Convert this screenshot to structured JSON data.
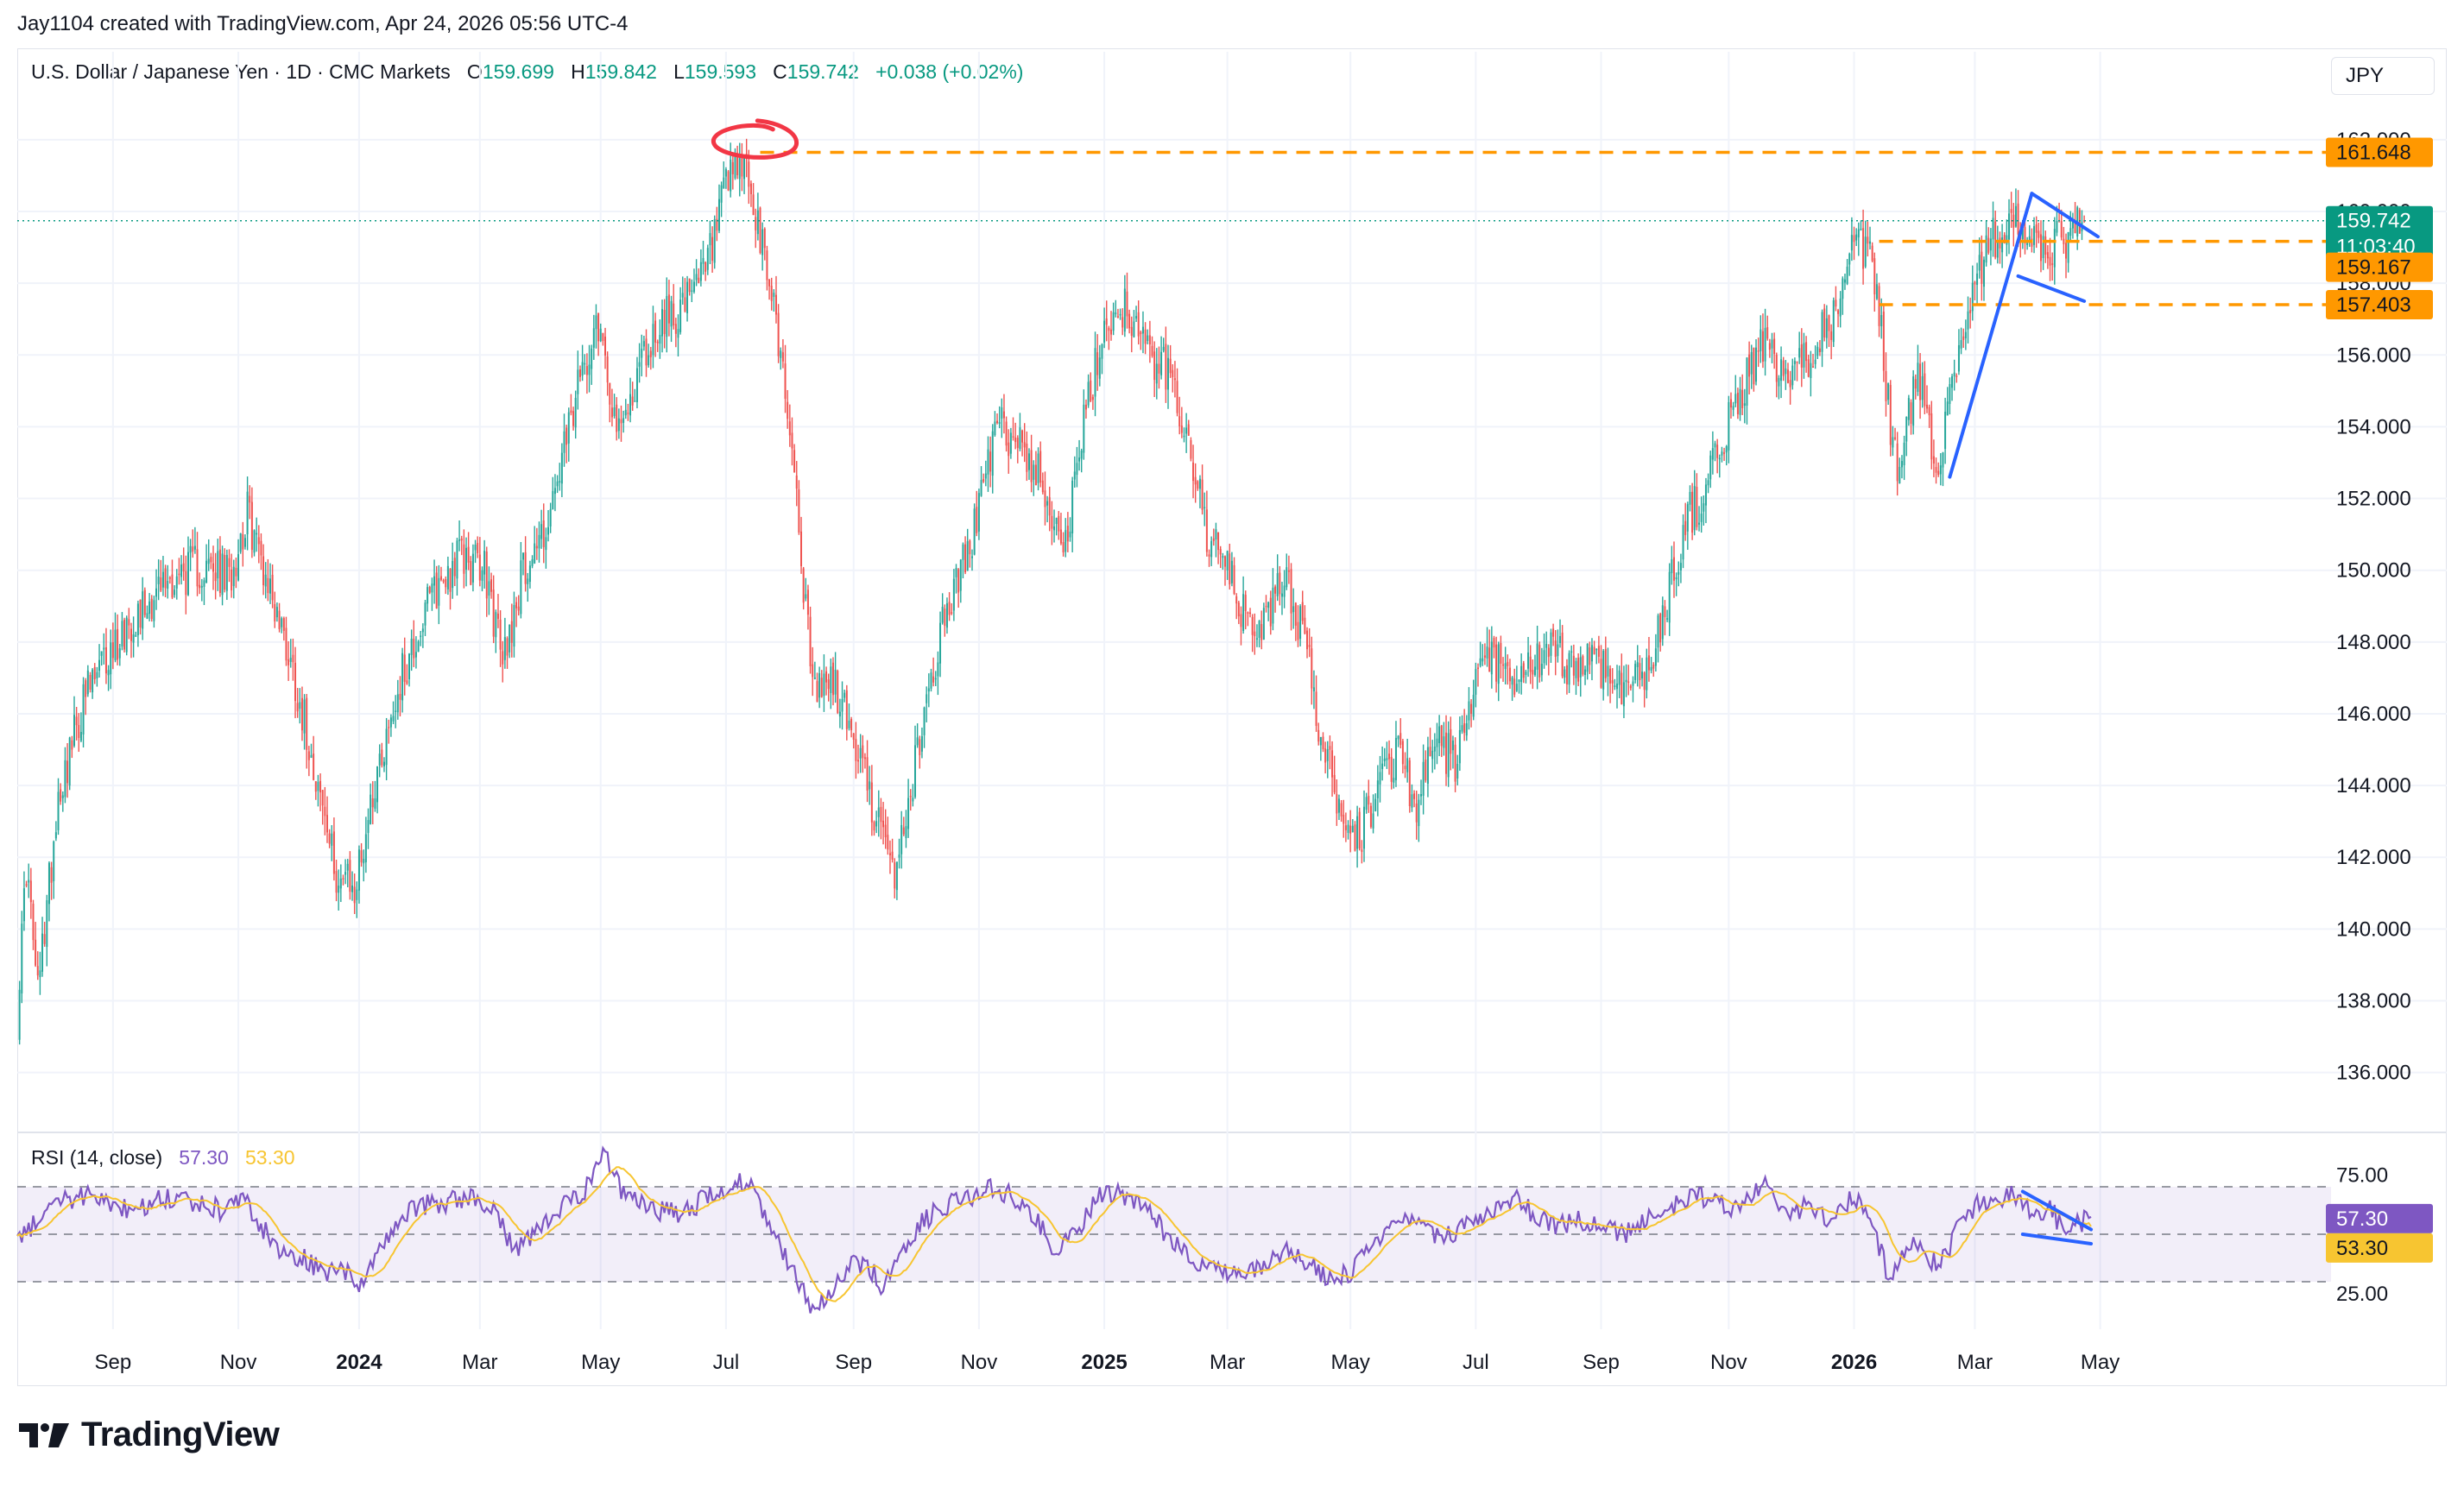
{
  "header": {
    "credit": "Jay1104 created with TradingView.com, Apr 24, 2026 05:56 UTC-4",
    "symbol": "U.S. Dollar / Japanese Yen · 1D · CMC Markets",
    "open_label": "O",
    "open": "159.699",
    "high_label": "H",
    "high": "159.842",
    "low_label": "L",
    "low": "159.593",
    "close_label": "C",
    "close": "159.742",
    "change": "+0.038 (+0.02%)",
    "currency": "JPY"
  },
  "rsi_legend": {
    "label": "RSI (14, close)",
    "rsi_value": "57.30",
    "ma_value": "53.30"
  },
  "price_tags": {
    "resistance": "161.648",
    "current": "159.742",
    "countdown": "11:03:40",
    "level_mid": "159.167",
    "level_low": "157.403"
  },
  "rsi_tags": {
    "rsi": "57.30",
    "ma": "53.30"
  },
  "brand": {
    "name": "TradingView"
  },
  "colors": {
    "up": "#26a69a",
    "down": "#ef5350",
    "accent_orange": "#ff9800",
    "line_blue": "#2962ff",
    "rsi": "#7e57c2",
    "rsi_ma": "#f7c531",
    "annotation_red": "#f23645",
    "current_price": "#089981"
  },
  "chart_data": [
    {
      "type": "candlestick",
      "title": "U.S. Dollar / Japanese Yen · 1D · CMC Markets",
      "ylabel": "JPY",
      "ylim": [
        134.5,
        163.2
      ],
      "yticks": [
        "136.000",
        "138.000",
        "140.000",
        "142.000",
        "144.000",
        "146.000",
        "148.000",
        "150.000",
        "152.000",
        "154.000",
        "156.000",
        "158.000",
        "160.000",
        "162.000"
      ],
      "xlim": [
        0,
        1010
      ],
      "xticks": [
        {
          "label": "Sep",
          "x": 42
        },
        {
          "label": "Nov",
          "x": 97
        },
        {
          "label": "2024",
          "x": 150,
          "bold": true
        },
        {
          "label": "Mar",
          "x": 203
        },
        {
          "label": "May",
          "x": 256
        },
        {
          "label": "Jul",
          "x": 311
        },
        {
          "label": "Sep",
          "x": 367
        },
        {
          "label": "Nov",
          "x": 422
        },
        {
          "label": "2025",
          "x": 477,
          "bold": true
        },
        {
          "label": "Mar",
          "x": 531
        },
        {
          "label": "May",
          "x": 585
        },
        {
          "label": "Jul",
          "x": 640
        },
        {
          "label": "Sep",
          "x": 695
        },
        {
          "label": "Nov",
          "x": 751
        },
        {
          "label": "2026",
          "x": 806,
          "bold": true
        },
        {
          "label": "Mar",
          "x": 859
        },
        {
          "label": "May",
          "x": 914
        }
      ],
      "anchors": [
        {
          "x": 0,
          "price": 137.6
        },
        {
          "x": 4,
          "price": 141.8
        },
        {
          "x": 9,
          "price": 138.2
        },
        {
          "x": 18,
          "price": 143.8
        },
        {
          "x": 30,
          "price": 146.5
        },
        {
          "x": 48,
          "price": 148.5
        },
        {
          "x": 64,
          "price": 149.6
        },
        {
          "x": 78,
          "price": 150.1
        },
        {
          "x": 93,
          "price": 149.8
        },
        {
          "x": 101,
          "price": 151.6
        },
        {
          "x": 110,
          "price": 149.7
        },
        {
          "x": 120,
          "price": 147.5
        },
        {
          "x": 130,
          "price": 144.7
        },
        {
          "x": 139,
          "price": 141.7
        },
        {
          "x": 148,
          "price": 141.0
        },
        {
          "x": 157,
          "price": 144.2
        },
        {
          "x": 168,
          "price": 146.9
        },
        {
          "x": 182,
          "price": 149.3
        },
        {
          "x": 194,
          "price": 150.4
        },
        {
          "x": 205,
          "price": 150.0
        },
        {
          "x": 213,
          "price": 147.5
        },
        {
          "x": 222,
          "price": 150.0
        },
        {
          "x": 234,
          "price": 151.5
        },
        {
          "x": 244,
          "price": 154.4
        },
        {
          "x": 254,
          "price": 157.2
        },
        {
          "x": 258,
          "price": 156.0
        },
        {
          "x": 264,
          "price": 153.6
        },
        {
          "x": 273,
          "price": 155.7
        },
        {
          "x": 283,
          "price": 157.0
        },
        {
          "x": 296,
          "price": 157.5
        },
        {
          "x": 304,
          "price": 158.8
        },
        {
          "x": 311,
          "price": 160.6
        },
        {
          "x": 319,
          "price": 161.4
        },
        {
          "x": 325,
          "price": 159.4
        },
        {
          "x": 332,
          "price": 157.5
        },
        {
          "x": 340,
          "price": 153.5
        },
        {
          "x": 349,
          "price": 146.6
        },
        {
          "x": 358,
          "price": 146.9
        },
        {
          "x": 366,
          "price": 145.5
        },
        {
          "x": 375,
          "price": 143.6
        },
        {
          "x": 384,
          "price": 141.4
        },
        {
          "x": 391,
          "price": 143.4
        },
        {
          "x": 397,
          "price": 145.7
        },
        {
          "x": 406,
          "price": 148.5
        },
        {
          "x": 418,
          "price": 150.7
        },
        {
          "x": 430,
          "price": 154.0
        },
        {
          "x": 440,
          "price": 153.6
        },
        {
          "x": 450,
          "price": 152.4
        },
        {
          "x": 460,
          "price": 150.7
        },
        {
          "x": 469,
          "price": 154.4
        },
        {
          "x": 478,
          "price": 157.0
        },
        {
          "x": 487,
          "price": 157.4
        },
        {
          "x": 496,
          "price": 156.0
        },
        {
          "x": 505,
          "price": 155.5
        },
        {
          "x": 514,
          "price": 153.7
        },
        {
          "x": 522,
          "price": 151.0
        },
        {
          "x": 531,
          "price": 150.0
        },
        {
          "x": 540,
          "price": 148.4
        },
        {
          "x": 549,
          "price": 148.6
        },
        {
          "x": 556,
          "price": 150.0
        },
        {
          "x": 565,
          "price": 148.0
        },
        {
          "x": 573,
          "price": 145.0
        },
        {
          "x": 581,
          "price": 143.4
        },
        {
          "x": 589,
          "price": 142.5
        },
        {
          "x": 598,
          "price": 144.2
        },
        {
          "x": 606,
          "price": 145.0
        },
        {
          "x": 614,
          "price": 143.5
        },
        {
          "x": 623,
          "price": 145.2
        },
        {
          "x": 631,
          "price": 144.6
        },
        {
          "x": 639,
          "price": 146.5
        },
        {
          "x": 647,
          "price": 147.7
        },
        {
          "x": 656,
          "price": 146.6
        },
        {
          "x": 665,
          "price": 147.4
        },
        {
          "x": 674,
          "price": 147.7
        },
        {
          "x": 683,
          "price": 147.3
        },
        {
          "x": 691,
          "price": 147.6
        },
        {
          "x": 700,
          "price": 147.0
        },
        {
          "x": 708,
          "price": 146.8
        },
        {
          "x": 716,
          "price": 147.2
        },
        {
          "x": 725,
          "price": 149.5
        },
        {
          "x": 733,
          "price": 151.5
        },
        {
          "x": 741,
          "price": 152.2
        },
        {
          "x": 750,
          "price": 154.0
        },
        {
          "x": 758,
          "price": 155.2
        },
        {
          "x": 766,
          "price": 156.4
        },
        {
          "x": 774,
          "price": 155.3
        },
        {
          "x": 783,
          "price": 155.6
        },
        {
          "x": 791,
          "price": 156.7
        },
        {
          "x": 799,
          "price": 157.1
        },
        {
          "x": 806,
          "price": 159.0
        },
        {
          "x": 812,
          "price": 158.8
        },
        {
          "x": 816,
          "price": 157.8
        },
        {
          "x": 822,
          "price": 154.0
        },
        {
          "x": 826,
          "price": 152.7
        },
        {
          "x": 833,
          "price": 155.4
        },
        {
          "x": 838,
          "price": 154.5
        },
        {
          "x": 842,
          "price": 152.8
        },
        {
          "x": 849,
          "price": 155.3
        },
        {
          "x": 858,
          "price": 157.8
        },
        {
          "x": 866,
          "price": 159.2
        },
        {
          "x": 874,
          "price": 159.6
        },
        {
          "x": 881,
          "price": 159.5
        },
        {
          "x": 888,
          "price": 158.7
        },
        {
          "x": 895,
          "price": 159.1
        },
        {
          "x": 901,
          "price": 159.3
        },
        {
          "x": 907,
          "price": 159.742
        }
      ],
      "levels": [
        {
          "label": "161.648",
          "price": 161.648,
          "color": "#ff9800",
          "x_start": 326
        },
        {
          "label": "159.167",
          "price": 159.167,
          "color": "#ff9800",
          "x_start": 817
        },
        {
          "label": "157.403",
          "price": 157.403,
          "color": "#ff9800",
          "x_start": 817
        }
      ],
      "current_price": 159.742,
      "trendlines": [
        {
          "x1": 848,
          "p1": 152.6,
          "x2": 884,
          "p2": 160.5
        },
        {
          "x1": 884,
          "p1": 160.5,
          "x2": 913,
          "p2": 159.3
        },
        {
          "x1": 878,
          "p1": 158.2,
          "x2": 907,
          "p2": 157.5
        }
      ],
      "annotation": {
        "type": "circle",
        "x": 321,
        "price": 162.0
      }
    },
    {
      "type": "line",
      "title": "RSI (14, close)",
      "ylim": [
        10,
        90
      ],
      "yticks": [
        "25.00",
        "75.00"
      ],
      "band": [
        30,
        70
      ],
      "midline": 50,
      "series": [
        {
          "name": "RSI",
          "color": "#7e57c2",
          "last": 57.3
        },
        {
          "name": "MA",
          "color": "#f7c531",
          "last": 53.3
        }
      ],
      "anchors": [
        {
          "x": 0,
          "v": 45
        },
        {
          "x": 10,
          "v": 58
        },
        {
          "x": 20,
          "v": 64
        },
        {
          "x": 30,
          "v": 66
        },
        {
          "x": 40,
          "v": 63
        },
        {
          "x": 50,
          "v": 60
        },
        {
          "x": 60,
          "v": 64
        },
        {
          "x": 70,
          "v": 66
        },
        {
          "x": 80,
          "v": 63
        },
        {
          "x": 90,
          "v": 60
        },
        {
          "x": 100,
          "v": 64
        },
        {
          "x": 108,
          "v": 52
        },
        {
          "x": 115,
          "v": 44
        },
        {
          "x": 125,
          "v": 40
        },
        {
          "x": 135,
          "v": 33
        },
        {
          "x": 142,
          "v": 35
        },
        {
          "x": 150,
          "v": 30
        },
        {
          "x": 158,
          "v": 40
        },
        {
          "x": 168,
          "v": 58
        },
        {
          "x": 178,
          "v": 62
        },
        {
          "x": 190,
          "v": 64
        },
        {
          "x": 200,
          "v": 66
        },
        {
          "x": 210,
          "v": 60
        },
        {
          "x": 218,
          "v": 42
        },
        {
          "x": 226,
          "v": 50
        },
        {
          "x": 236,
          "v": 60
        },
        {
          "x": 246,
          "v": 65
        },
        {
          "x": 252,
          "v": 72
        },
        {
          "x": 258,
          "v": 84
        },
        {
          "x": 264,
          "v": 70
        },
        {
          "x": 272,
          "v": 64
        },
        {
          "x": 282,
          "v": 60
        },
        {
          "x": 292,
          "v": 58
        },
        {
          "x": 300,
          "v": 64
        },
        {
          "x": 310,
          "v": 68
        },
        {
          "x": 316,
          "v": 74
        },
        {
          "x": 322,
          "v": 70
        },
        {
          "x": 330,
          "v": 54
        },
        {
          "x": 336,
          "v": 42
        },
        {
          "x": 342,
          "v": 32
        },
        {
          "x": 348,
          "v": 20
        },
        {
          "x": 356,
          "v": 24
        },
        {
          "x": 364,
          "v": 36
        },
        {
          "x": 372,
          "v": 38
        },
        {
          "x": 380,
          "v": 28
        },
        {
          "x": 388,
          "v": 40
        },
        {
          "x": 396,
          "v": 54
        },
        {
          "x": 406,
          "v": 62
        },
        {
          "x": 416,
          "v": 64
        },
        {
          "x": 426,
          "v": 70
        },
        {
          "x": 436,
          "v": 66
        },
        {
          "x": 446,
          "v": 58
        },
        {
          "x": 456,
          "v": 42
        },
        {
          "x": 466,
          "v": 52
        },
        {
          "x": 476,
          "v": 68
        },
        {
          "x": 486,
          "v": 66
        },
        {
          "x": 496,
          "v": 60
        },
        {
          "x": 506,
          "v": 48
        },
        {
          "x": 516,
          "v": 40
        },
        {
          "x": 526,
          "v": 36
        },
        {
          "x": 536,
          "v": 32
        },
        {
          "x": 546,
          "v": 36
        },
        {
          "x": 556,
          "v": 44
        },
        {
          "x": 566,
          "v": 38
        },
        {
          "x": 576,
          "v": 30
        },
        {
          "x": 586,
          "v": 34
        },
        {
          "x": 596,
          "v": 48
        },
        {
          "x": 606,
          "v": 56
        },
        {
          "x": 616,
          "v": 52
        },
        {
          "x": 626,
          "v": 48
        },
        {
          "x": 636,
          "v": 54
        },
        {
          "x": 646,
          "v": 60
        },
        {
          "x": 656,
          "v": 66
        },
        {
          "x": 666,
          "v": 58
        },
        {
          "x": 676,
          "v": 54
        },
        {
          "x": 686,
          "v": 56
        },
        {
          "x": 696,
          "v": 52
        },
        {
          "x": 706,
          "v": 50
        },
        {
          "x": 716,
          "v": 56
        },
        {
          "x": 726,
          "v": 62
        },
        {
          "x": 736,
          "v": 66
        },
        {
          "x": 746,
          "v": 64
        },
        {
          "x": 756,
          "v": 60
        },
        {
          "x": 766,
          "v": 72
        },
        {
          "x": 776,
          "v": 58
        },
        {
          "x": 786,
          "v": 62
        },
        {
          "x": 796,
          "v": 56
        },
        {
          "x": 806,
          "v": 66
        },
        {
          "x": 812,
          "v": 58
        },
        {
          "x": 818,
          "v": 42
        },
        {
          "x": 822,
          "v": 30
        },
        {
          "x": 828,
          "v": 42
        },
        {
          "x": 834,
          "v": 46
        },
        {
          "x": 840,
          "v": 38
        },
        {
          "x": 846,
          "v": 40
        },
        {
          "x": 852,
          "v": 54
        },
        {
          "x": 860,
          "v": 62
        },
        {
          "x": 868,
          "v": 64
        },
        {
          "x": 876,
          "v": 68
        },
        {
          "x": 884,
          "v": 58
        },
        {
          "x": 892,
          "v": 62
        },
        {
          "x": 898,
          "v": 50
        },
        {
          "x": 904,
          "v": 54
        },
        {
          "x": 910,
          "v": 57.3
        }
      ],
      "trendlines": [
        {
          "x1": 880,
          "v1": 68,
          "x2": 910,
          "v2": 52
        },
        {
          "x1": 880,
          "v1": 50,
          "x2": 910,
          "v2": 46
        }
      ]
    }
  ]
}
